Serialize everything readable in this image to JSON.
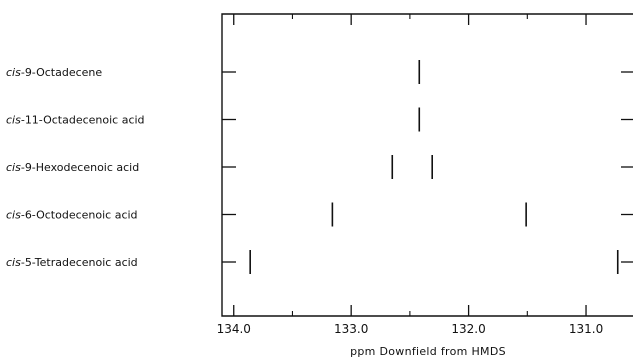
{
  "chart_data": {
    "type": "scatter",
    "marker": "vertical-line",
    "xlabel": "ppm Downfield from HMDS",
    "x_reversed": true,
    "xlim": [
      134.1,
      130.6
    ],
    "xticks": [
      {
        "value": 134.0,
        "label": "134.0"
      },
      {
        "value": 133.0,
        "label": "133.0"
      },
      {
        "value": 132.0,
        "label": "132.0"
      },
      {
        "value": 131.0,
        "label": "131.0"
      }
    ],
    "minor_ticks": [
      133.5,
      132.5,
      131.5
    ],
    "grid": false,
    "series": [
      {
        "prefix": "cis",
        "suffix": "-9-Octadecene",
        "values": [
          132.42
        ]
      },
      {
        "prefix": "cis",
        "suffix": "-11-Octadecenoic acid",
        "values": [
          132.42
        ]
      },
      {
        "prefix": "cis",
        "suffix": "-9-Hexodecenoic acid",
        "values": [
          132.65,
          132.31
        ]
      },
      {
        "prefix": "cis",
        "suffix": "-6-Octodecenoic acid",
        "values": [
          133.16,
          131.51
        ]
      },
      {
        "prefix": "cis",
        "suffix": "-5-Tetradecenoic acid",
        "values": [
          133.86,
          130.73
        ]
      }
    ]
  }
}
